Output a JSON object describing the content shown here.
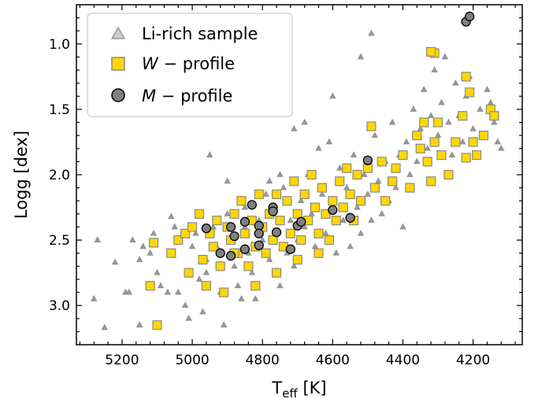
{
  "chart_data": {
    "type": "scatter",
    "x_axis": {
      "label_main": "T",
      "label_sub": "eff",
      "label_unit": " [K]",
      "range": [
        5330,
        4060
      ],
      "inverted": true,
      "ticks": [
        5200,
        5000,
        4800,
        4600,
        4400,
        4200
      ]
    },
    "y_axis": {
      "label": "Logg [dex]",
      "range": [
        3.3,
        0.7
      ],
      "inverted": true,
      "ticks": [
        "1.0",
        "1.5",
        "2.0",
        "2.5",
        "3.0"
      ]
    },
    "grid": false,
    "legend": {
      "placement": "top-left",
      "entries": [
        {
          "key": "li",
          "marker": "triangle",
          "label": "Li-rich sample"
        },
        {
          "key": "w",
          "marker": "square",
          "label_letter": "W",
          "label_rest": " − profile"
        },
        {
          "key": "m",
          "marker": "circle",
          "label_letter": "M",
          "label_rest": " − profile"
        }
      ]
    },
    "colors": {
      "triangle": "#999999",
      "triangle_edge": "#8a8a8a",
      "square": "#ffd700",
      "square_edge": "#8a8a8a",
      "circle": "#808080",
      "circle_edge": "#000000"
    },
    "series": [
      {
        "key": "li",
        "points": [
          [
            5280,
            2.95
          ],
          [
            5270,
            2.5
          ],
          [
            5250,
            3.17
          ],
          [
            5220,
            2.67
          ],
          [
            5190,
            2.9
          ],
          [
            5180,
            2.9
          ],
          [
            5170,
            2.5
          ],
          [
            5150,
            2.65
          ],
          [
            5150,
            3.15
          ],
          [
            5140,
            2.55
          ],
          [
            5120,
            2.6
          ],
          [
            5100,
            2.75
          ],
          [
            5090,
            2.85
          ],
          [
            5060,
            2.32
          ],
          [
            5050,
            2.4
          ],
          [
            5040,
            2.9
          ],
          [
            5020,
            3.0
          ],
          [
            5010,
            3.1
          ],
          [
            4990,
            2.45
          ],
          [
            4980,
            2.8
          ],
          [
            4970,
            3.05
          ],
          [
            4960,
            2.65
          ],
          [
            4950,
            1.85
          ],
          [
            4940,
            2.4
          ],
          [
            4930,
            2.55
          ],
          [
            4920,
            2.9
          ],
          [
            4910,
            3.15
          ],
          [
            4900,
            2.3
          ],
          [
            4890,
            2.5
          ],
          [
            4880,
            2.7
          ],
          [
            4870,
            2.85
          ],
          [
            4860,
            2.2
          ],
          [
            4850,
            2.4
          ],
          [
            4840,
            2.6
          ],
          [
            4830,
            2.75
          ],
          [
            4820,
            2.95
          ],
          [
            4810,
            2.35
          ],
          [
            4800,
            2.5
          ],
          [
            4790,
            2.15
          ],
          [
            4780,
            2.65
          ],
          [
            4770,
            2.3
          ],
          [
            4760,
            2.45
          ],
          [
            4750,
            2.85
          ],
          [
            4740,
            2.1
          ],
          [
            4730,
            2.6
          ],
          [
            4720,
            2.35
          ],
          [
            4710,
            1.65
          ],
          [
            4700,
            2.5
          ],
          [
            4690,
            2.2
          ],
          [
            4680,
            2.4
          ],
          [
            4670,
            2.0
          ],
          [
            4660,
            2.3
          ],
          [
            4650,
            2.55
          ],
          [
            4640,
            1.8
          ],
          [
            4630,
            2.15
          ],
          [
            4620,
            2.45
          ],
          [
            4610,
            1.75
          ],
          [
            4600,
            2.25
          ],
          [
            4590,
            2.6
          ],
          [
            4580,
            1.95
          ],
          [
            4570,
            2.35
          ],
          [
            4560,
            2.1
          ],
          [
            4550,
            2.55
          ],
          [
            4540,
            1.85
          ],
          [
            4530,
            2.25
          ],
          [
            4520,
            2.45
          ],
          [
            4510,
            2.0
          ],
          [
            4500,
            2.15
          ],
          [
            4490,
            2.35
          ],
          [
            4480,
            1.7
          ],
          [
            4470,
            2.05
          ],
          [
            4460,
            2.3
          ],
          [
            4450,
            1.9
          ],
          [
            4440,
            2.2
          ],
          [
            4430,
            1.6
          ],
          [
            4420,
            2.1
          ],
          [
            4410,
            1.85
          ],
          [
            4400,
            2.4
          ],
          [
            4390,
            1.75
          ],
          [
            4380,
            2.0
          ],
          [
            4370,
            1.5
          ],
          [
            4360,
            1.9
          ],
          [
            4350,
            1.65
          ],
          [
            4340,
            1.35
          ],
          [
            4330,
            1.8
          ],
          [
            4320,
            1.55
          ],
          [
            4310,
            1.2
          ],
          [
            4300,
            1.7
          ],
          [
            4290,
            1.45
          ],
          [
            4280,
            1.1
          ],
          [
            4270,
            1.6
          ],
          [
            4260,
            1.85
          ],
          [
            4250,
            1.3
          ],
          [
            4240,
            1.55
          ],
          [
            4230,
            1.75
          ],
          [
            4220,
            1.4
          ],
          [
            4210,
            1.25
          ],
          [
            4200,
            1.65
          ],
          [
            4190,
            1.85
          ],
          [
            4180,
            1.5
          ],
          [
            4170,
            1.7
          ],
          [
            4160,
            1.35
          ],
          [
            4150,
            1.45
          ],
          [
            4140,
            1.6
          ],
          [
            4130,
            1.75
          ],
          [
            4120,
            1.8
          ],
          [
            4490,
            0.92
          ],
          [
            4520,
            1.1
          ],
          [
            4600,
            1.4
          ],
          [
            4680,
            1.6
          ],
          [
            4750,
            2.0
          ],
          [
            4850,
            2.25
          ],
          [
            4900,
            2.05
          ],
          [
            5000,
            2.55
          ],
          [
            5070,
            2.9
          ],
          [
            5110,
            2.45
          ],
          [
            4960,
            2.75
          ],
          [
            4860,
            2.95
          ],
          [
            4780,
            2.05
          ],
          [
            4710,
            2.7
          ]
        ]
      },
      {
        "key": "w",
        "points": [
          [
            5110,
            2.52
          ],
          [
            5120,
            2.85
          ],
          [
            5100,
            3.15
          ],
          [
            5060,
            2.6
          ],
          [
            5040,
            2.5
          ],
          [
            5020,
            2.45
          ],
          [
            5010,
            2.75
          ],
          [
            5000,
            2.4
          ],
          [
            4980,
            2.3
          ],
          [
            4970,
            2.65
          ],
          [
            4960,
            2.85
          ],
          [
            4950,
            2.45
          ],
          [
            4940,
            2.55
          ],
          [
            4930,
            2.35
          ],
          [
            4920,
            2.7
          ],
          [
            4910,
            2.9
          ],
          [
            4900,
            2.4
          ],
          [
            4890,
            2.5
          ],
          [
            4880,
            2.3
          ],
          [
            4870,
            2.6
          ],
          [
            4860,
            2.2
          ],
          [
            4850,
            2.45
          ],
          [
            4840,
            2.7
          ],
          [
            4830,
            2.35
          ],
          [
            4820,
            2.55
          ],
          [
            4810,
            2.15
          ],
          [
            4800,
            2.4
          ],
          [
            4790,
            2.6
          ],
          [
            4780,
            2.3
          ],
          [
            4770,
            2.5
          ],
          [
            4760,
            2.15
          ],
          [
            4750,
            2.35
          ],
          [
            4740,
            2.55
          ],
          [
            4730,
            2.2
          ],
          [
            4720,
            2.45
          ],
          [
            4710,
            2.05
          ],
          [
            4700,
            2.3
          ],
          [
            4690,
            2.5
          ],
          [
            4680,
            2.15
          ],
          [
            4670,
            2.35
          ],
          [
            4660,
            2.0
          ],
          [
            4650,
            2.25
          ],
          [
            4640,
            2.45
          ],
          [
            4630,
            2.1
          ],
          [
            4620,
            2.3
          ],
          [
            4610,
            2.5
          ],
          [
            4600,
            2.2
          ],
          [
            4590,
            2.35
          ],
          [
            4580,
            2.05
          ],
          [
            4570,
            2.25
          ],
          [
            4560,
            1.95
          ],
          [
            4550,
            2.15
          ],
          [
            4540,
            2.35
          ],
          [
            4530,
            2.0
          ],
          [
            4520,
            2.2
          ],
          [
            4500,
            1.95
          ],
          [
            4490,
            1.63
          ],
          [
            4480,
            2.1
          ],
          [
            4460,
            1.9
          ],
          [
            4450,
            2.2
          ],
          [
            4430,
            2.05
          ],
          [
            4420,
            1.95
          ],
          [
            4400,
            1.85
          ],
          [
            4380,
            2.1
          ],
          [
            4360,
            1.7
          ],
          [
            4350,
            1.8
          ],
          [
            4340,
            1.6
          ],
          [
            4330,
            1.9
          ],
          [
            4320,
            2.05
          ],
          [
            4310,
            1.75
          ],
          [
            4310,
            1.07
          ],
          [
            4320,
            1.06
          ],
          [
            4300,
            1.6
          ],
          [
            4290,
            1.85
          ],
          [
            4270,
            2.0
          ],
          [
            4250,
            1.75
          ],
          [
            4230,
            1.55
          ],
          [
            4220,
            1.87
          ],
          [
            4210,
            1.37
          ],
          [
            4220,
            1.25
          ],
          [
            4200,
            1.75
          ],
          [
            4190,
            1.85
          ],
          [
            4170,
            1.7
          ],
          [
            4150,
            1.5
          ],
          [
            4140,
            1.55
          ],
          [
            4880,
            2.6
          ],
          [
            4820,
            2.85
          ],
          [
            4760,
            2.75
          ],
          [
            4700,
            2.65
          ],
          [
            4640,
            2.6
          ]
        ]
      },
      {
        "key": "m",
        "points": [
          [
            4960,
            2.41
          ],
          [
            4920,
            2.6
          ],
          [
            4890,
            2.4
          ],
          [
            4880,
            2.47
          ],
          [
            4890,
            2.62
          ],
          [
            4850,
            2.57
          ],
          [
            4850,
            2.36
          ],
          [
            4830,
            2.23
          ],
          [
            4810,
            2.39
          ],
          [
            4810,
            2.45
          ],
          [
            4810,
            2.54
          ],
          [
            4770,
            2.25
          ],
          [
            4770,
            2.28
          ],
          [
            4760,
            2.44
          ],
          [
            4720,
            2.57
          ],
          [
            4700,
            2.39
          ],
          [
            4690,
            2.36
          ],
          [
            4600,
            2.27
          ],
          [
            4550,
            2.33
          ],
          [
            4500,
            1.89
          ],
          [
            4220,
            0.83
          ],
          [
            4210,
            0.79
          ]
        ]
      }
    ]
  }
}
